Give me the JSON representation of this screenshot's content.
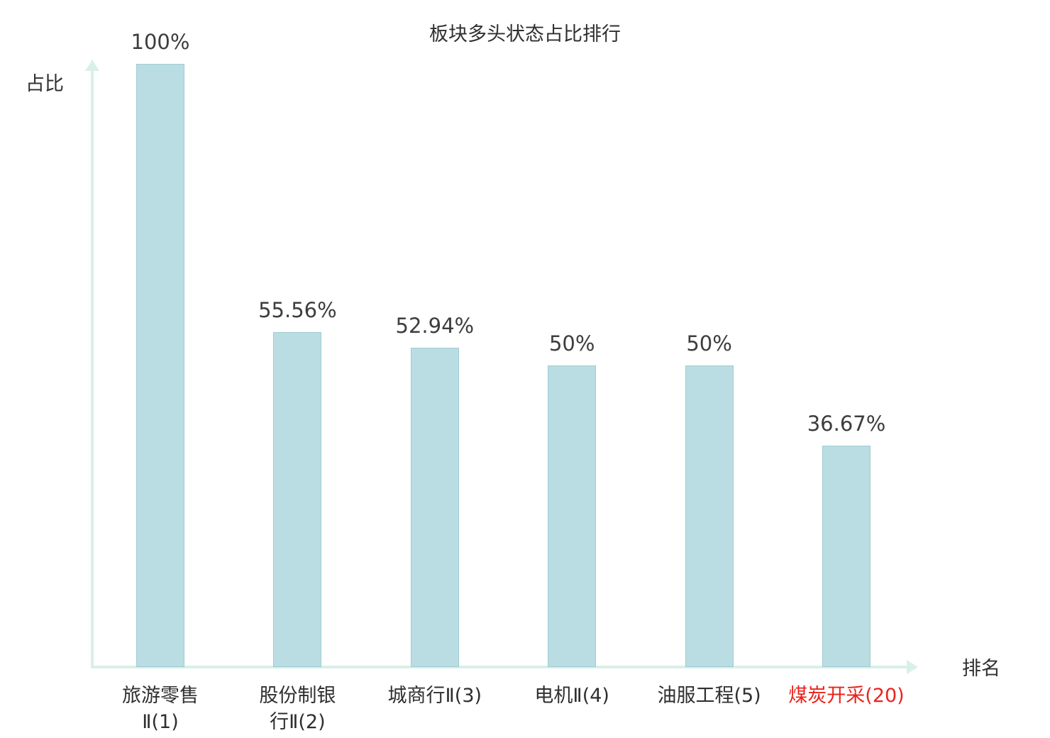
{
  "chart_data": {
    "type": "bar",
    "title": "板块多头状态占比排行",
    "xlabel": "排名",
    "ylabel": "占比",
    "ylim": [
      0,
      100
    ],
    "grid": false,
    "legend": false,
    "categories": [
      "旅游零售\nⅡ(1)",
      "股份制银\n行Ⅱ(2)",
      "城商行Ⅱ(3)",
      "电机Ⅱ(4)",
      "油服工程(5)",
      "煤炭开采(20)"
    ],
    "values": [
      100,
      55.56,
      52.94,
      50,
      50,
      36.67
    ],
    "value_labels": [
      "100%",
      "55.56%",
      "52.94%",
      "50%",
      "50%",
      "36.67%"
    ],
    "highlight_index": 5,
    "colors": {
      "bar_fill": "#b9dde2",
      "bar_border": "#a0ccd3",
      "axis": "#d9f0e8",
      "value_text": "#3d3d3d",
      "category_text": "#2f2f2f",
      "highlight_text": "#e9241d"
    }
  }
}
